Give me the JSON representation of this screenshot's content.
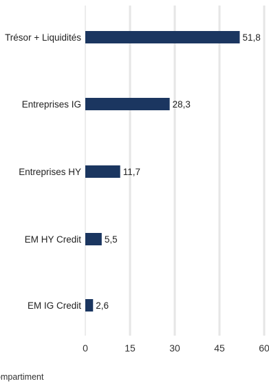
{
  "chart_data": {
    "type": "bar",
    "orientation": "horizontal",
    "categories": [
      "Trésor + Liquidités",
      "Entreprises IG",
      "Entreprises HY",
      "EM HY Credit",
      "EM IG Credit"
    ],
    "values": [
      51.8,
      28.3,
      11.7,
      5.5,
      2.6
    ],
    "value_labels": [
      "51,8",
      "28,3",
      "11,7",
      "5,5",
      "2,6"
    ],
    "xticks": [
      "0",
      "15",
      "30",
      "45",
      "60"
    ],
    "xlim": [
      0,
      60
    ],
    "bar_color": "#1b3660",
    "grid_color": "#e6e6e6",
    "grid": true
  },
  "footer": {
    "note": "ompartiment"
  }
}
